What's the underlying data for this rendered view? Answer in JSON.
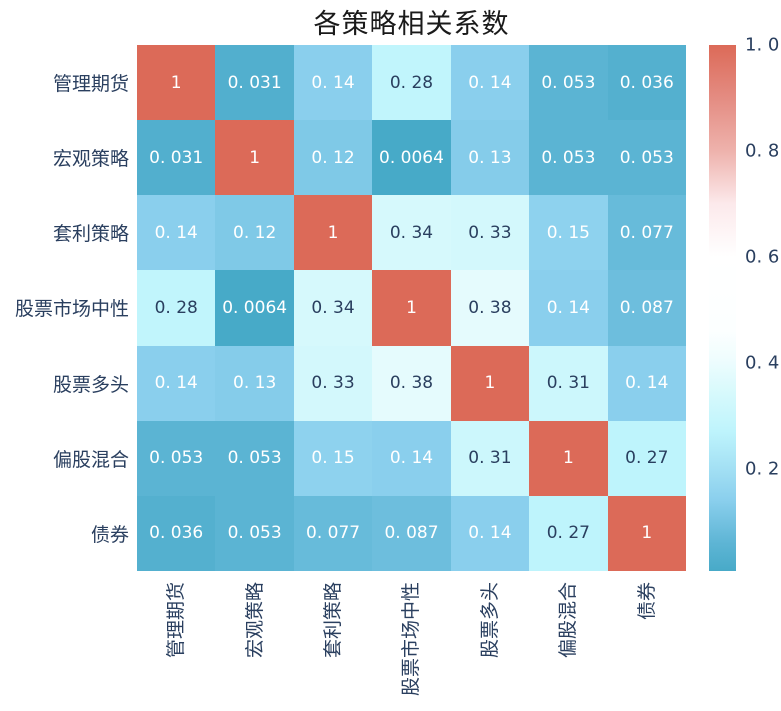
{
  "title": "各策略相关系数",
  "colors": {
    "background": "#ffffff",
    "title_text": "#1a1a1a",
    "axis_text": "#2a3f5f",
    "cell_text_dark": "#2a3f5f",
    "cell_text_light": "#ffffff"
  },
  "chart_data": {
    "type": "heatmap",
    "title": "各策略相关系数",
    "x_categories": [
      "管理期货",
      "宏观策略",
      "套利策略",
      "股票市场中性",
      "股票多头",
      "偏股混合",
      "债券"
    ],
    "y_categories": [
      "管理期货",
      "宏观策略",
      "套利策略",
      "股票市场中性",
      "股票多头",
      "偏股混合",
      "债券"
    ],
    "matrix": [
      [
        1,
        0.031,
        0.14,
        0.28,
        0.14,
        0.053,
        0.036
      ],
      [
        0.031,
        1,
        0.12,
        0.0064,
        0.13,
        0.053,
        0.053
      ],
      [
        0.14,
        0.12,
        1,
        0.34,
        0.33,
        0.15,
        0.077
      ],
      [
        0.28,
        0.0064,
        0.34,
        1,
        0.38,
        0.14,
        0.087
      ],
      [
        0.14,
        0.13,
        0.33,
        0.38,
        1,
        0.31,
        0.14
      ],
      [
        0.053,
        0.053,
        0.15,
        0.14,
        0.31,
        1,
        0.27
      ],
      [
        0.036,
        0.053,
        0.077,
        0.087,
        0.14,
        0.27,
        1
      ]
    ],
    "cell_labels": [
      [
        "1",
        "0. 031",
        "0. 14",
        "0. 28",
        "0. 14",
        "0. 053",
        "0. 036"
      ],
      [
        "0. 031",
        "1",
        "0. 12",
        "0. 0064",
        "0. 13",
        "0. 053",
        "0. 053"
      ],
      [
        "0. 14",
        "0. 12",
        "1",
        "0. 34",
        "0. 33",
        "0. 15",
        "0. 077"
      ],
      [
        "0. 28",
        "0. 0064",
        "0. 34",
        "1",
        "0. 38",
        "0. 14",
        "0. 087"
      ],
      [
        "0. 14",
        "0. 13",
        "0. 33",
        "0. 38",
        "1",
        "0. 31",
        "0. 14"
      ],
      [
        "0. 053",
        "0. 053",
        "0. 15",
        "0. 14",
        "0. 31",
        "1",
        "0. 27"
      ],
      [
        "0. 036",
        "0. 053",
        "0. 077",
        "0. 087",
        "0. 14",
        "0. 27",
        "1"
      ]
    ],
    "colorbar": {
      "vmin": 0.0064,
      "vmax": 1.0,
      "ticks": [
        1.0,
        0.8,
        0.6,
        0.4,
        0.2
      ],
      "tick_labels": [
        "1. 0",
        "0. 8",
        "0. 6",
        "0. 4",
        "0. 2"
      ]
    },
    "colormap_stops": [
      [
        0.0,
        "#40a6c6"
      ],
      [
        0.007,
        "#48aac8"
      ],
      [
        0.06,
        "#5eb5d5"
      ],
      [
        0.14,
        "#8acfed"
      ],
      [
        0.2,
        "#a3e0f4"
      ],
      [
        0.27,
        "#bef4fc"
      ],
      [
        0.34,
        "#d6f9fc"
      ],
      [
        0.41,
        "#f0fdfe"
      ],
      [
        0.46,
        "#fcffff"
      ],
      [
        0.6,
        "#ffffff"
      ],
      [
        0.7,
        "#fce9eb"
      ],
      [
        0.8,
        "#eeb2ac"
      ],
      [
        0.9,
        "#e48c82"
      ],
      [
        1.0,
        "#dc6a58"
      ]
    ],
    "legend_position": "right",
    "grid": false
  }
}
